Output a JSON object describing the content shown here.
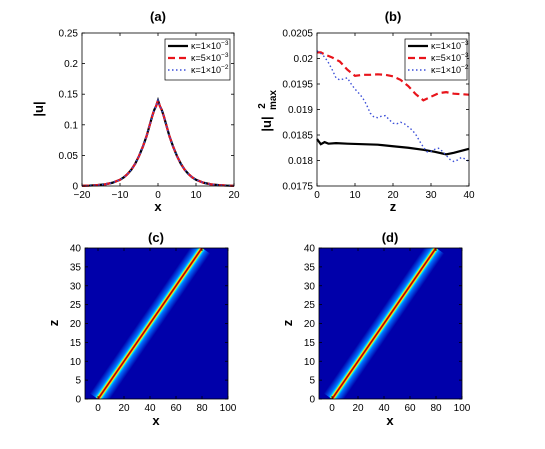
{
  "chart_data": [
    {
      "type": "line",
      "title": "(a)",
      "xlabel": "x",
      "ylabel": "|u|",
      "xlim": [
        -20,
        20
      ],
      "ylim": [
        0,
        0.25
      ],
      "xticks": [
        "−20",
        "−10",
        "0",
        "10",
        "20"
      ],
      "yticks": [
        "0",
        "0.05",
        "0.1",
        "0.15",
        "0.2",
        "0.25"
      ],
      "legend_position": "top-right",
      "grid": false,
      "x": [
        -20,
        -18,
        -16,
        -14,
        -12,
        -10,
        -9,
        -8,
        -7,
        -6,
        -5,
        -4,
        -3,
        -2,
        -1.5,
        -1,
        -0.5,
        0,
        0.5,
        1,
        1.5,
        2,
        3,
        4,
        5,
        6,
        7,
        8,
        9,
        10,
        12,
        14,
        16,
        18,
        20
      ],
      "series": [
        {
          "name": "κ=1×10",
          "exp": "−3",
          "color": "#000000",
          "dash": "",
          "width": 2.2,
          "values": [
            0.0003,
            0.0007,
            0.0014,
            0.0027,
            0.0053,
            0.0102,
            0.0142,
            0.0196,
            0.0269,
            0.0365,
            0.0489,
            0.064,
            0.0817,
            0.1036,
            0.1146,
            0.1241,
            0.1306,
            0.14,
            0.1306,
            0.1241,
            0.1146,
            0.1036,
            0.0817,
            0.064,
            0.0489,
            0.0365,
            0.0269,
            0.0196,
            0.0142,
            0.0102,
            0.0053,
            0.0027,
            0.0014,
            0.0007,
            0.0003
          ]
        },
        {
          "name": "κ=5×10",
          "exp": "−3",
          "color": "#e8141b",
          "dash": "7,4",
          "width": 2.2,
          "values": [
            0.0003,
            0.0007,
            0.0014,
            0.0027,
            0.0053,
            0.0102,
            0.0142,
            0.0196,
            0.0269,
            0.0365,
            0.0489,
            0.064,
            0.0817,
            0.1036,
            0.1146,
            0.1241,
            0.1306,
            0.14,
            0.1306,
            0.1241,
            0.1146,
            0.1036,
            0.0817,
            0.064,
            0.0489,
            0.0365,
            0.0269,
            0.0196,
            0.0142,
            0.0102,
            0.0053,
            0.0027,
            0.0014,
            0.0007,
            0.0003
          ]
        },
        {
          "name": "κ=1×10",
          "exp": "−2",
          "color": "#3b4fd8",
          "dash": "1.5,2.5",
          "width": 1.4,
          "values": [
            0.0003,
            0.0007,
            0.0014,
            0.0027,
            0.0053,
            0.0102,
            0.0142,
            0.0196,
            0.0269,
            0.0365,
            0.0489,
            0.064,
            0.0817,
            0.1036,
            0.1146,
            0.1241,
            0.1306,
            0.14,
            0.1306,
            0.1241,
            0.1146,
            0.1036,
            0.0817,
            0.064,
            0.0489,
            0.0365,
            0.0269,
            0.0196,
            0.0142,
            0.0102,
            0.0053,
            0.0027,
            0.0014,
            0.0007,
            0.0003
          ]
        }
      ]
    },
    {
      "type": "line",
      "title": "(b)",
      "xlabel": "z",
      "ylabel": "|u|",
      "ylabel_sup": "2",
      "ylabel_sub": "max",
      "xlim": [
        0,
        40
      ],
      "ylim": [
        0.0175,
        0.0205
      ],
      "xticks": [
        "0",
        "10",
        "20",
        "30",
        "40"
      ],
      "yticks": [
        "0.0175",
        "0.018",
        "0.0185",
        "0.019",
        "0.0195",
        "0.02",
        "0.0205"
      ],
      "legend_position": "top-right",
      "grid": false,
      "series": [
        {
          "name": "κ=1×10",
          "exp": "−3",
          "color": "#000000",
          "dash": "",
          "width": 2.2,
          "x": [
            0,
            0.5,
            1,
            2,
            3,
            5,
            8,
            12,
            16,
            20,
            24,
            28,
            31,
            34,
            36,
            38,
            40
          ],
          "values": [
            0.01842,
            0.01837,
            0.01832,
            0.01836,
            0.01833,
            0.01834,
            0.01833,
            0.01832,
            0.01831,
            0.01828,
            0.01825,
            0.01821,
            0.01817,
            0.01812,
            0.01815,
            0.01819,
            0.01823
          ]
        },
        {
          "name": "κ=5×10",
          "exp": "−3",
          "color": "#e8141b",
          "dash": "7,4",
          "width": 2.2,
          "x": [
            0,
            1,
            2,
            4,
            6,
            8,
            10,
            12,
            14,
            16,
            18,
            20,
            22,
            24,
            26,
            28,
            30,
            32,
            34,
            36,
            38,
            40
          ],
          "values": [
            0.02012,
            0.02012,
            0.02008,
            0.02002,
            0.01994,
            0.01978,
            0.01966,
            0.01968,
            0.01968,
            0.01969,
            0.01968,
            0.01965,
            0.01958,
            0.01946,
            0.0193,
            0.01918,
            0.01925,
            0.01932,
            0.01934,
            0.01931,
            0.0193,
            0.01929
          ]
        },
        {
          "name": "κ=1×10",
          "exp": "−2",
          "color": "#3b4fd8",
          "dash": "1.5,2.5",
          "width": 1.4,
          "x": [
            0,
            1,
            2,
            3,
            4,
            5,
            6,
            7,
            8,
            9,
            10,
            11,
            12,
            13,
            14,
            15,
            16,
            17,
            18,
            19,
            20,
            21,
            22,
            23,
            24,
            25,
            26,
            27,
            28,
            29,
            30,
            31,
            32,
            33,
            34,
            35,
            36,
            37,
            38,
            39,
            40
          ],
          "values": [
            0.02015,
            0.0201,
            0.02003,
            0.01992,
            0.01978,
            0.01962,
            0.01958,
            0.0196,
            0.01962,
            0.0195,
            0.0194,
            0.01932,
            0.01923,
            0.0191,
            0.01893,
            0.01885,
            0.01884,
            0.01887,
            0.01888,
            0.0188,
            0.01873,
            0.01872,
            0.01875,
            0.01872,
            0.01866,
            0.0186,
            0.01851,
            0.01838,
            0.01826,
            0.01817,
            0.01818,
            0.01822,
            0.01824,
            0.01818,
            0.0181,
            0.01802,
            0.01798,
            0.01801,
            0.01806,
            0.01803,
            0.01798
          ]
        }
      ]
    },
    {
      "type": "heatmap",
      "title": "(c)",
      "xlabel": "x",
      "ylabel": "z",
      "xlim": [
        -10,
        100
      ],
      "ylim": [
        0,
        40
      ],
      "xticks": [
        "0",
        "20",
        "40",
        "60",
        "80",
        "100"
      ],
      "yticks": [
        "0",
        "5",
        "10",
        "15",
        "20",
        "25",
        "30",
        "35",
        "40"
      ],
      "colormap": "jet",
      "ridge": {
        "x_at_z0": 0,
        "x_at_z40": 80
      },
      "background_color": "#0000aa",
      "peak_color": "#800000"
    },
    {
      "type": "heatmap",
      "title": "(d)",
      "xlabel": "x",
      "ylabel": "z",
      "xlim": [
        -10,
        100
      ],
      "ylim": [
        0,
        40
      ],
      "xticks": [
        "0",
        "20",
        "40",
        "60",
        "80",
        "100"
      ],
      "yticks": [
        "0",
        "5",
        "10",
        "15",
        "20",
        "25",
        "30",
        "35",
        "40"
      ],
      "colormap": "jet",
      "ridge": {
        "x_at_z0": 0,
        "x_at_z40": 80
      },
      "background_color": "#0000aa",
      "peak_color": "#800000"
    }
  ]
}
